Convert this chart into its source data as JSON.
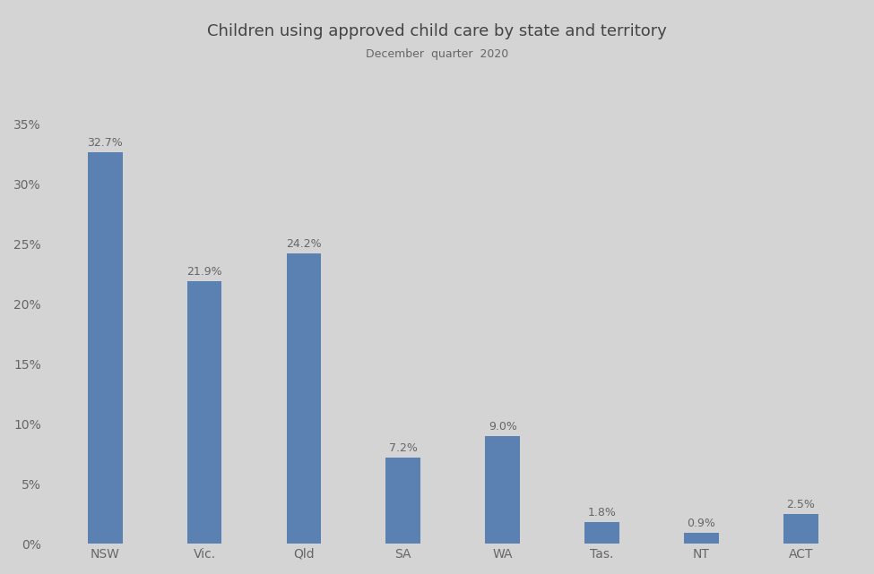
{
  "title": "Children using approved child care by state and territory",
  "subtitle": "December  quarter  2020",
  "categories": [
    "NSW",
    "Vic.",
    "Qld",
    "SA",
    "WA",
    "Tas.",
    "NT",
    "ACT"
  ],
  "values": [
    32.7,
    21.9,
    24.2,
    7.2,
    9.0,
    1.8,
    0.9,
    2.5
  ],
  "bar_color": "#5b80b2",
  "background_color": "#d4d4d4",
  "label_color": "#666666",
  "title_color": "#444444",
  "yticks": [
    0,
    5,
    10,
    15,
    20,
    25,
    30,
    35
  ],
  "ylim": [
    0,
    37
  ],
  "bar_width": 0.35
}
